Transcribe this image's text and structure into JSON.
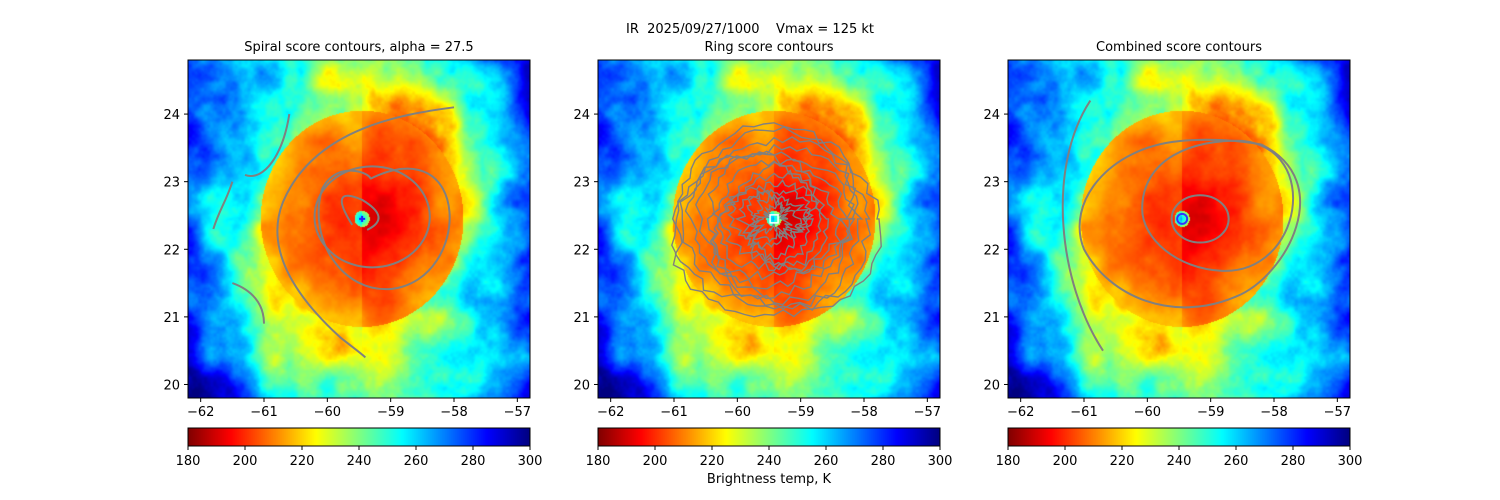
{
  "suptitle": "IR  2025/09/27/1000    Vmax = 125 kt",
  "colorbar_label": "Brightness temp, K",
  "colors": {
    "contour": "#808080",
    "eye_marker_spiral": "#2020ff",
    "eye_marker_ring": "#ffffff",
    "eye_marker_combined": "#3333ff"
  },
  "chart_data": [
    {
      "type": "heatmap",
      "title": "Spiral score contours, alpha = 27.5",
      "xlim": [
        -62.2,
        -56.8
      ],
      "ylim": [
        19.8,
        24.8
      ],
      "xticks": [
        -62,
        -61,
        -60,
        -59,
        -58,
        -57
      ],
      "yticks": [
        20,
        21,
        22,
        23,
        24
      ],
      "center": [
        -59.45,
        22.45
      ],
      "overlay": "spiral contours",
      "colorbar": {
        "min": 180,
        "max": 300,
        "ticks": [
          180,
          200,
          220,
          240,
          260,
          280,
          300
        ],
        "cmap": "jet_r"
      }
    },
    {
      "type": "heatmap",
      "title": "Ring score contours",
      "xlim": [
        -62.2,
        -56.8
      ],
      "ylim": [
        19.8,
        24.8
      ],
      "xticks": [
        -62,
        -61,
        -60,
        -59,
        -58,
        -57
      ],
      "yticks": [
        20,
        21,
        22,
        23,
        24
      ],
      "center": [
        -59.42,
        22.45
      ],
      "overlay": "ring contours",
      "colorbar": {
        "min": 180,
        "max": 300,
        "ticks": [
          180,
          200,
          220,
          240,
          260,
          280,
          300
        ],
        "cmap": "jet_r"
      }
    },
    {
      "type": "heatmap",
      "title": "Combined score contours",
      "xlim": [
        -62.2,
        -56.8
      ],
      "ylim": [
        19.8,
        24.8
      ],
      "xticks": [
        -62,
        -61,
        -60,
        -59,
        -58,
        -57
      ],
      "yticks": [
        20,
        21,
        22,
        23,
        24
      ],
      "center": [
        -59.45,
        22.45
      ],
      "overlay": "combined contours",
      "colorbar": {
        "min": 180,
        "max": 300,
        "ticks": [
          180,
          200,
          220,
          240,
          260,
          280,
          300
        ],
        "cmap": "jet_r"
      }
    }
  ]
}
